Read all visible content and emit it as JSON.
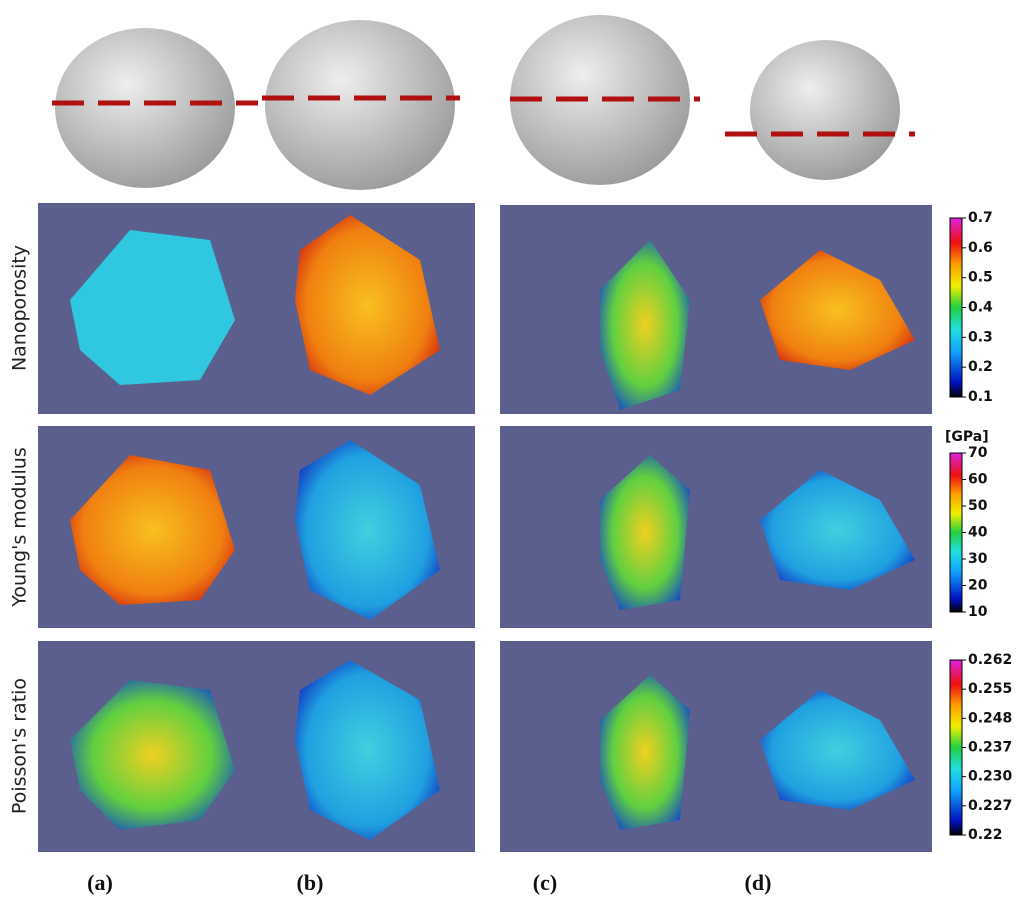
{
  "row_labels": [
    "Nanoporosity",
    "Young's modulus",
    "Poisson's ratio"
  ],
  "colorbars": [
    {
      "ticks": [
        0.7,
        0.6,
        0.5,
        0.4,
        0.3,
        0.2,
        0.1
      ]
    },
    {
      "unit": "[GPa]",
      "ticks": [
        70,
        60,
        50,
        40,
        30,
        20,
        10
      ]
    },
    {
      "ticks": [
        0.262,
        0.255,
        0.248,
        0.237,
        {
          "value": 0.23,
          "label": "0.230"
        },
        0.227,
        0.22
      ]
    }
  ],
  "panel_labels": [
    "(a)",
    "(b)",
    "(c)",
    "(d)"
  ]
}
